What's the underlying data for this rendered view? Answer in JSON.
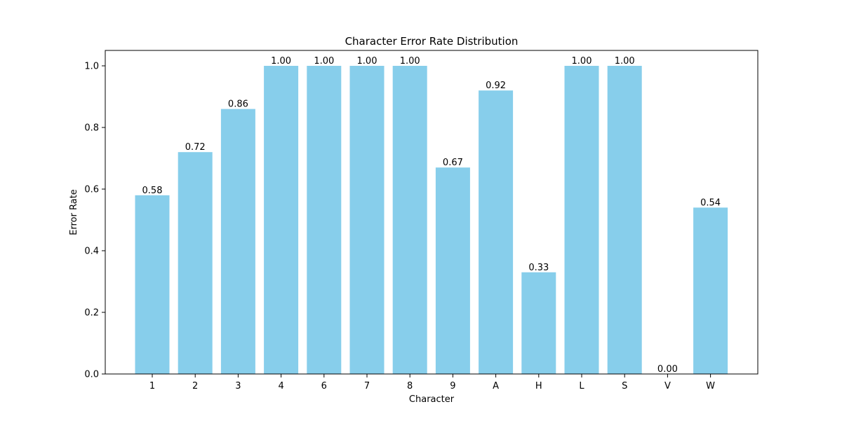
{
  "chart_data": {
    "type": "bar",
    "title": "Character Error Rate Distribution",
    "xlabel": "Character",
    "ylabel": "Error Rate",
    "categories": [
      "1",
      "2",
      "3",
      "4",
      "6",
      "7",
      "8",
      "9",
      "A",
      "H",
      "L",
      "S",
      "V",
      "W"
    ],
    "values": [
      0.58,
      0.72,
      0.86,
      1.0,
      1.0,
      1.0,
      1.0,
      0.67,
      0.92,
      0.33,
      1.0,
      1.0,
      0.0,
      0.54
    ],
    "value_labels": [
      "0.58",
      "0.72",
      "0.86",
      "1.00",
      "1.00",
      "1.00",
      "1.00",
      "0.67",
      "0.92",
      "0.33",
      "1.00",
      "1.00",
      "0.00",
      "0.54"
    ],
    "yticks": [
      0.0,
      0.2,
      0.4,
      0.6,
      0.8,
      1.0
    ],
    "ytick_labels": [
      "0.0",
      "0.2",
      "0.4",
      "0.6",
      "0.8",
      "1.0"
    ],
    "ylim": [
      0,
      1.05
    ],
    "grid": false,
    "legend": false,
    "bar_color": "#87ceeb"
  }
}
